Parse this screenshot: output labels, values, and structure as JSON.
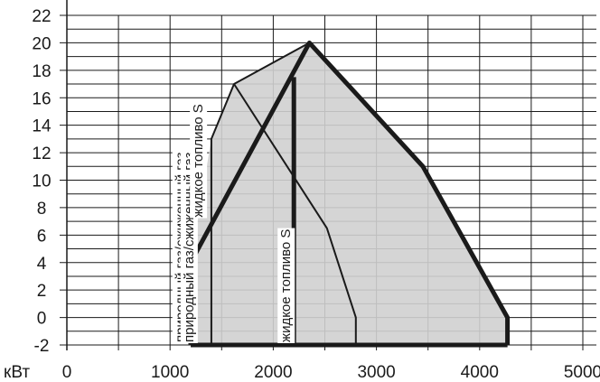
{
  "chart_data": {
    "type": "area",
    "title": "",
    "xlabel": "",
    "ylabel": "",
    "x_unit": "кВт",
    "xlim": [
      0,
      5000
    ],
    "ylim": [
      -2,
      22
    ],
    "x_ticks": [
      0,
      1000,
      2000,
      3000,
      4000,
      5000
    ],
    "y_ticks": [
      -2,
      0,
      2,
      4,
      6,
      8,
      10,
      12,
      14,
      16,
      18,
      20,
      22
    ],
    "grid": true,
    "fill_color": "#d0d0d0",
    "line_color": "#1a1a1a",
    "series": [
      {
        "name": "природный газ/сжиженный газ",
        "style": "thick",
        "points": [
          [
            1200,
            -2
          ],
          [
            1200,
            4
          ],
          [
            2350,
            20
          ],
          [
            3450,
            11
          ],
          [
            4270,
            0
          ],
          [
            4270,
            -2
          ]
        ]
      },
      {
        "name": "жидкое топливо S",
        "style": "thin",
        "points": [
          [
            1400,
            -2
          ],
          [
            1400,
            13
          ],
          [
            1620,
            17
          ],
          [
            2350,
            20
          ]
        ]
      },
      {
        "name": "жидкое топливо S",
        "style": "thin",
        "points": [
          [
            1620,
            17
          ],
          [
            2520,
            6.5
          ],
          [
            2800,
            0
          ],
          [
            2800,
            -2
          ]
        ]
      },
      {
        "name": "",
        "style": "thick",
        "points": [
          [
            2200,
            -2
          ],
          [
            2200,
            17.5
          ]
        ]
      }
    ],
    "shaded_region": [
      [
        1200,
        -2
      ],
      [
        1200,
        4
      ],
      [
        1400,
        13
      ],
      [
        1620,
        17
      ],
      [
        2350,
        20
      ],
      [
        3450,
        11
      ],
      [
        4270,
        0
      ],
      [
        4270,
        -2
      ]
    ],
    "vertical_labels": [
      {
        "text": "природный газ/сжиженный газ",
        "x": 1110,
        "y": -1.8
      },
      {
        "text": "природный газ/сжиженный газ",
        "x": 1190,
        "y": -1.8
      },
      {
        "text": "жидкое топливо S",
        "x": 1280,
        "y": 7.3
      },
      {
        "text": "жидкое топливо S",
        "x": 2130,
        "y": -1.8
      }
    ]
  }
}
